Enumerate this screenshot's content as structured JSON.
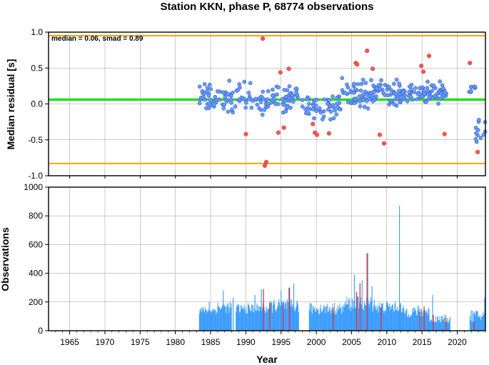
{
  "title": "Station KKN, phase P, 68774 observations",
  "stats_text": "median = 0.06, smad = 0.89",
  "colors": {
    "median_line": "#22dd22",
    "bound_line": "#ffa500",
    "point_normal": "#6699ff",
    "point_outlier": "#ff5555",
    "bar_normal": "#3399ff",
    "bar_highlight": "#dd3333",
    "grid": "#999999"
  },
  "chart_data": [
    {
      "type": "scatter",
      "name": "residual-panel",
      "xlabel": "",
      "ylabel": "Median residual [s]",
      "xlim": [
        1962,
        2024
      ],
      "ylim": [
        -1.0,
        1.0
      ],
      "yticks": [
        "1.0",
        "0.5",
        "0.0",
        "-0.5",
        "-1.0"
      ],
      "ytick_values": [
        1.0,
        0.5,
        0.0,
        -0.5,
        -1.0
      ],
      "grid": true,
      "median": 0.06,
      "upper_bound": 0.95,
      "lower_bound": -0.83,
      "outliers": [
        [
          1990.0,
          -0.42
        ],
        [
          1992.4,
          0.91
        ],
        [
          1992.7,
          -0.86
        ],
        [
          1992.9,
          -0.81
        ],
        [
          1994.6,
          -0.4
        ],
        [
          1994.9,
          0.44
        ],
        [
          1995.4,
          -0.33
        ],
        [
          1996.1,
          0.49
        ],
        [
          1999.5,
          -0.28
        ],
        [
          1999.8,
          -0.4
        ],
        [
          2000.1,
          -0.43
        ],
        [
          2001.8,
          -0.41
        ],
        [
          2005.6,
          0.57
        ],
        [
          2005.8,
          0.55
        ],
        [
          2007.2,
          0.74
        ],
        [
          2008.0,
          0.49
        ],
        [
          2009.0,
          -0.43
        ],
        [
          2009.6,
          -0.55
        ],
        [
          2014.9,
          0.53
        ],
        [
          2015.2,
          0.45
        ],
        [
          2016.0,
          0.67
        ],
        [
          2018.2,
          -0.42
        ],
        [
          2021.8,
          0.57
        ],
        [
          2022.9,
          -0.67
        ]
      ],
      "clusters": [
        {
          "x_range": [
            1983.4,
            1997.4
          ],
          "mean": 0.08,
          "spread": 0.17,
          "n": 150
        },
        {
          "x_range": [
            1997.6,
            2003.5
          ],
          "mean": -0.02,
          "spread": 0.18,
          "n": 55
        },
        {
          "x_range": [
            2003.5,
            2011.5
          ],
          "mean": 0.14,
          "spread": 0.15,
          "n": 95
        },
        {
          "x_range": [
            2011.5,
            2018.6
          ],
          "mean": 0.15,
          "spread": 0.12,
          "n": 95
        },
        {
          "x_range": [
            2021.6,
            2022.6
          ],
          "mean": 0.22,
          "spread": 0.08,
          "n": 8
        },
        {
          "x_range": [
            2022.6,
            2024.0
          ],
          "mean": -0.38,
          "spread": 0.14,
          "n": 12
        }
      ]
    },
    {
      "type": "bar",
      "name": "observation-panel",
      "xlabel": "Year",
      "ylabel": "Observations",
      "xlim": [
        1962,
        2024
      ],
      "ylim": [
        0,
        1000
      ],
      "yticks": [
        "1000",
        "800",
        "600",
        "400",
        "200",
        "0"
      ],
      "ytick_values": [
        1000,
        800,
        600,
        400,
        200,
        0
      ],
      "xticks": [
        "1965",
        "1970",
        "1975",
        "1980",
        "1985",
        "1990",
        "1995",
        "2000",
        "2005",
        "2010",
        "2015",
        "2020"
      ],
      "xtick_values": [
        1965,
        1970,
        1975,
        1980,
        1985,
        1990,
        1995,
        2000,
        2005,
        2010,
        2015,
        2020
      ],
      "grid": true,
      "segments": [
        {
          "x_range": [
            1983.4,
            1986.0
          ],
          "base": 140,
          "spread": 40
        },
        {
          "x_range": [
            1986.0,
            1988.0
          ],
          "base": 160,
          "spread": 60
        },
        {
          "x_range": [
            1988.6,
            1993.5
          ],
          "base": 150,
          "spread": 55
        },
        {
          "x_range": [
            1993.5,
            1997.5
          ],
          "base": 170,
          "spread": 70
        },
        {
          "x_range": [
            1999.0,
            2004.0
          ],
          "base": 150,
          "spread": 60
        },
        {
          "x_range": [
            2004.0,
            2008.5
          ],
          "base": 180,
          "spread": 80
        },
        {
          "x_range": [
            2008.5,
            2012.0
          ],
          "base": 160,
          "spread": 60
        },
        {
          "x_range": [
            2012.0,
            2016.0
          ],
          "base": 130,
          "spread": 60
        },
        {
          "x_range": [
            2016.0,
            2019.0
          ],
          "base": 80,
          "spread": 40
        },
        {
          "x_range": [
            2021.8,
            2024.0
          ],
          "base": 100,
          "spread": 60
        }
      ],
      "peaks": [
        [
          1984.8,
          200
        ],
        [
          1986.8,
          280
        ],
        [
          1988.2,
          230
        ],
        [
          1991.3,
          250
        ],
        [
          1992.2,
          290
        ],
        [
          1995.0,
          280
        ],
        [
          1996.1,
          300
        ],
        [
          1996.8,
          330
        ],
        [
          2005.4,
          390
        ],
        [
          2006.5,
          350
        ],
        [
          2007.3,
          540
        ],
        [
          2007.9,
          310
        ],
        [
          2011.8,
          870
        ],
        [
          2016.5,
          250
        ],
        [
          2023.9,
          230
        ]
      ],
      "highlight_bars": [
        [
          1992.5,
          290
        ],
        [
          1993.4,
          200
        ],
        [
          1995.3,
          180
        ],
        [
          1996.2,
          300
        ],
        [
          2002.4,
          160
        ],
        [
          2005.7,
          270
        ],
        [
          2006.2,
          330
        ],
        [
          2007.2,
          540
        ],
        [
          2009.2,
          160
        ],
        [
          2014.7,
          130
        ],
        [
          2015.3,
          170
        ],
        [
          2016.6,
          110
        ],
        [
          2018.4,
          90
        ],
        [
          2022.4,
          60
        ]
      ]
    }
  ]
}
